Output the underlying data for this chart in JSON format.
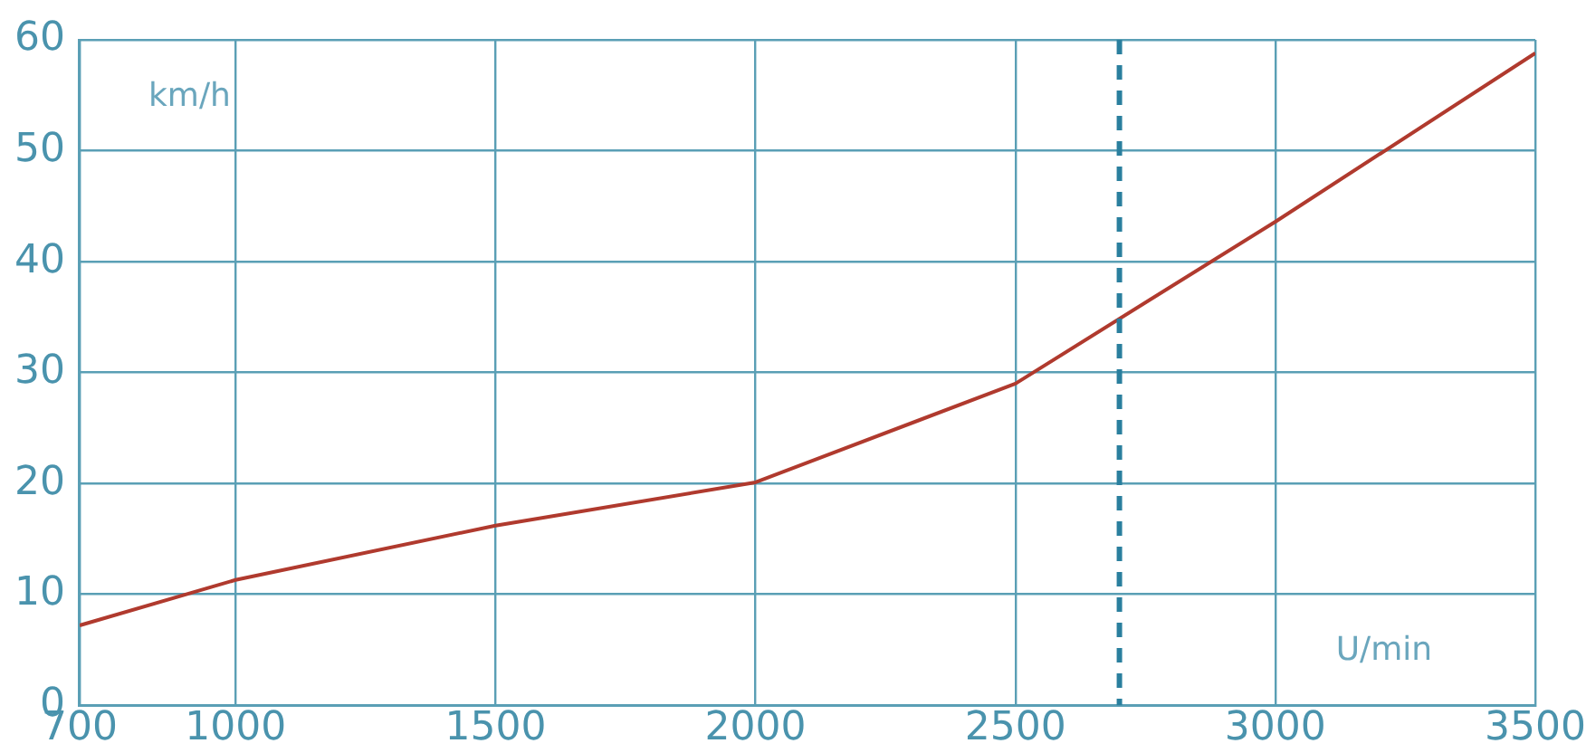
{
  "chart_data": {
    "type": "line",
    "xlabel": "U/min",
    "ylabel": "km/h",
    "x": [
      700,
      1000,
      1500,
      2000,
      2500,
      3000,
      3500
    ],
    "series": [
      {
        "color": "#b03a2e",
        "values": [
          7.2,
          11.3,
          16.2,
          20.1,
          29,
          43.6,
          58.8
        ]
      }
    ],
    "xlim": [
      700,
      3500
    ],
    "xticks": [
      700,
      1000,
      1500,
      2000,
      2500,
      3000,
      3500
    ],
    "ylim": [
      0,
      60
    ],
    "yticks": [
      0,
      10,
      20,
      30,
      40,
      50,
      60
    ],
    "grid": true,
    "legend": false,
    "marker": "none",
    "line_style": "solid",
    "ref_lines": [
      {
        "axis": "x",
        "value": 2700,
        "color": "#2a7f9e",
        "line_style": "dashed"
      }
    ]
  }
}
